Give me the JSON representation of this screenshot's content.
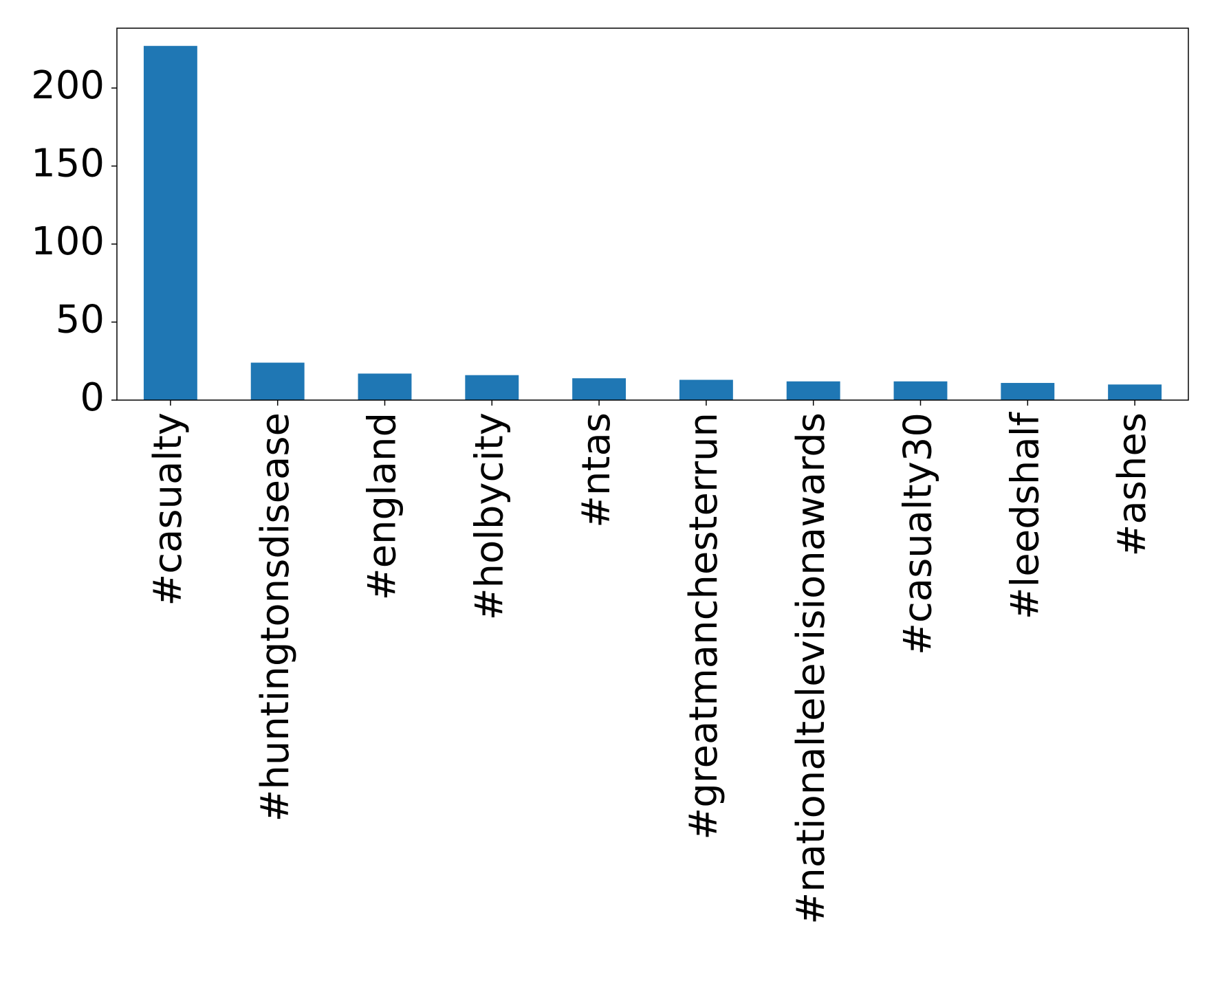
{
  "chart_data": {
    "type": "bar",
    "categories": [
      "#casualty",
      "#huntingtonsdisease",
      "#england",
      "#holbycity",
      "#ntas",
      "#greatmanchesterrun",
      "#nationaltelevisionawards",
      "#casualty30",
      "#leedshalf",
      "#ashes"
    ],
    "values": [
      227,
      24,
      17,
      16,
      14,
      13,
      12,
      12,
      11,
      10
    ],
    "color": "#1f77b4",
    "ylim": [
      0,
      238.35
    ],
    "yticks": [
      0,
      50,
      100,
      150,
      200
    ],
    "grid": false
  }
}
